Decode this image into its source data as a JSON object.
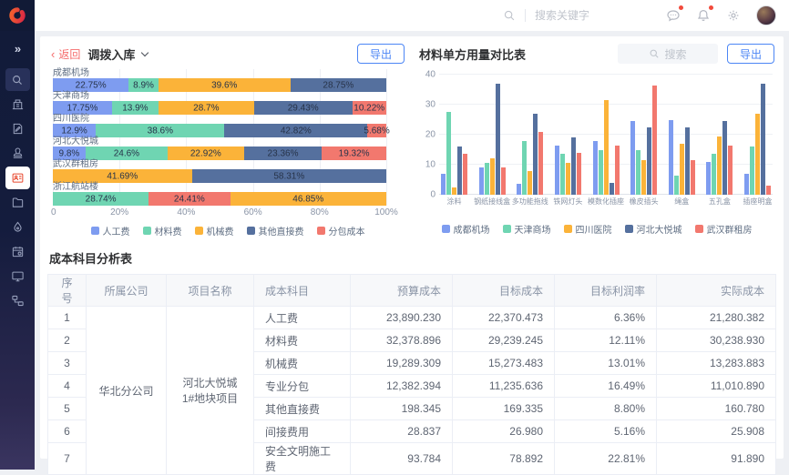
{
  "topbar": {
    "search_placeholder": "搜索关键字",
    "icons": [
      "search-icon",
      "messages-icon",
      "notifications-icon",
      "settings-icon",
      "avatar"
    ],
    "badges": {
      "messages": true,
      "notifications": true
    }
  },
  "sidebar": {
    "icons": [
      "double-chevron-right-icon",
      "search-icon",
      "building-icon",
      "document-edit-icon",
      "stamp-icon",
      "id-card-icon",
      "folder-icon",
      "droplet-icon",
      "calendar-gear-icon",
      "monitor-icon",
      "workflow-icon"
    ],
    "active_icon": "id-card-icon"
  },
  "left_panel": {
    "back_label": "返回",
    "export_label": "导出"
  },
  "right_panel": {
    "search_placeholder": "搜索",
    "export_label": "导出"
  },
  "table": {
    "title": "成本科目分析表",
    "columns": [
      "序号",
      "所属公司",
      "项目名称",
      "成本科目",
      "预算成本",
      "目标成本",
      "目标利润率",
      "实际成本"
    ],
    "company": "华北分公司",
    "project": "河北大悦城1#地块项目",
    "rows": [
      {
        "no": "1",
        "subject": "人工费",
        "budget": "23,890.230",
        "target": "22,370.473",
        "rate": "6.36%",
        "actual": "21,280.382"
      },
      {
        "no": "2",
        "subject": "材料费",
        "budget": "32,378.896",
        "target": "29,239.245",
        "rate": "12.11%",
        "actual": "30,238.930"
      },
      {
        "no": "3",
        "subject": "机械费",
        "budget": "19,289.309",
        "target": "15,273.483",
        "rate": "13.01%",
        "actual": "13,283.883"
      },
      {
        "no": "4",
        "subject": "专业分包",
        "budget": "12,382.394",
        "target": "11,235.636",
        "rate": "16.49%",
        "actual": "11,010.890"
      },
      {
        "no": "5",
        "subject": "其他直接费",
        "budget": "198.345",
        "target": "169.335",
        "rate": "8.80%",
        "actual": "160.780"
      },
      {
        "no": "6",
        "subject": "间接费用",
        "budget": "28.837",
        "target": "26.980",
        "rate": "5.16%",
        "actual": "25.908"
      },
      {
        "no": "7",
        "subject": "安全文明施工费",
        "budget": "93.784",
        "target": "78.892",
        "rate": "22.81%",
        "actual": "91.890"
      }
    ]
  },
  "chart_data": [
    {
      "type": "bar",
      "variant": "horizontal-stacked",
      "title": "调拨入库",
      "xlim": [
        0,
        100
      ],
      "xticks": [
        "0",
        "20%",
        "40%",
        "60%",
        "80%",
        "100%"
      ],
      "xtick_pos": [
        0,
        20,
        40,
        60,
        80,
        100
      ],
      "series": [
        {
          "name": "人工费",
          "color": "#7e9cf0"
        },
        {
          "name": "材料费",
          "color": "#6fd5b2"
        },
        {
          "name": "机械费",
          "color": "#fbb339"
        },
        {
          "name": "其他直接费",
          "color": "#55709e"
        },
        {
          "name": "分包成本",
          "color": "#f2786e"
        }
      ],
      "rows": [
        {
          "label": "成都机场",
          "segments": [
            [
              "人工费",
              22.75
            ],
            [
              "材料费",
              8.9
            ],
            [
              "机械费",
              39.6
            ],
            [
              "其他直接费",
              28.75
            ]
          ]
        },
        {
          "label": "天津商场",
          "segments": [
            [
              "人工费",
              17.75
            ],
            [
              "材料费",
              13.9
            ],
            [
              "机械费",
              28.7
            ],
            [
              "其他直接费",
              29.43
            ],
            [
              "分包成本",
              10.22
            ]
          ]
        },
        {
          "label": "四川医院",
          "segments": [
            [
              "人工费",
              12.9
            ],
            [
              "材料费",
              38.6
            ],
            [
              "其他直接费",
              42.82
            ],
            [
              "分包成本",
              5.68
            ]
          ]
        },
        {
          "label": "河北大悦城",
          "segments": [
            [
              "人工费",
              9.8
            ],
            [
              "材料费",
              24.6
            ],
            [
              "机械费",
              22.92
            ],
            [
              "其他直接费",
              23.36
            ],
            [
              "分包成本",
              19.32
            ]
          ]
        },
        {
          "label": "武汉群租房",
          "segments": [
            [
              "机械费",
              41.69
            ],
            [
              "其他直接费",
              58.31
            ]
          ]
        },
        {
          "label": "浙江航站楼",
          "segments": [
            [
              "材料费",
              28.74
            ],
            [
              "分包成本",
              24.41
            ],
            [
              "机械费",
              46.85
            ]
          ]
        }
      ]
    },
    {
      "type": "bar",
      "variant": "vertical-grouped",
      "title": "材料单方用量对比表",
      "ylim": [
        0,
        40
      ],
      "yticks": [
        0,
        10,
        20,
        30,
        40
      ],
      "categories": [
        "涂料",
        "钢纸接线盒",
        "多功能拖线",
        "铁网灯头",
        "模数化插座",
        "橡皮插头",
        "绳盒",
        "五孔盒",
        "插座明盒"
      ],
      "series": [
        {
          "name": "成都机场",
          "color": "#7e9cf0",
          "values": [
            7,
            9,
            3.5,
            16.5,
            18,
            24.5,
            25,
            11,
            7
          ]
        },
        {
          "name": "天津商场",
          "color": "#6fd5b2",
          "values": [
            27.5,
            10.5,
            18,
            13.5,
            15,
            15,
            6.5,
            13.5,
            16
          ]
        },
        {
          "name": "四川医院",
          "color": "#fbb339",
          "values": [
            2.5,
            12,
            8,
            10.5,
            31.5,
            11.5,
            17,
            19.5,
            27
          ]
        },
        {
          "name": "河北大悦城",
          "color": "#55709e",
          "values": [
            16,
            37,
            27,
            19,
            4,
            22.5,
            22.5,
            24.5,
            37
          ]
        },
        {
          "name": "武汉群租房",
          "color": "#f2786e",
          "values": [
            13.5,
            9,
            21,
            14,
            16.5,
            36.5,
            11.5,
            16.5,
            3
          ]
        }
      ]
    }
  ],
  "colors": {
    "accent_blue": "#4c86f5",
    "brand_red": "#e8402d",
    "back_link_red": "#f56c6c",
    "sidebar_bg": "#121b39",
    "series_blue": "#7e9cf0",
    "series_green": "#6fd5b2",
    "series_yellow": "#fbb339",
    "series_dark_blue": "#55709e",
    "series_red": "#f2786e"
  }
}
